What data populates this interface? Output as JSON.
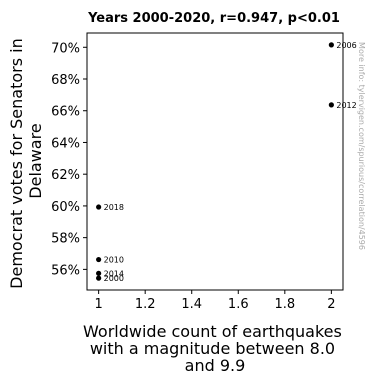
{
  "chart_data": {
    "type": "scatter",
    "title": "Years 2000-2020, r=0.947, p<0.01",
    "xlabel": [
      "Worldwide count of earthquakes",
      "with a magnitude between 8.0",
      "and 9.9"
    ],
    "ylabel": [
      "Democrat votes for Senators in",
      "Delaware"
    ],
    "xlim": [
      0.95,
      2.05
    ],
    "ylim": [
      0.547,
      0.709
    ],
    "xticks": [
      1,
      1.2,
      1.4,
      1.6,
      1.8,
      2
    ],
    "xtick_labels": [
      "1",
      "1.2",
      "1.4",
      "1.6",
      "1.8",
      "2"
    ],
    "yticks": [
      0.56,
      0.58,
      0.6,
      0.62,
      0.64,
      0.66,
      0.68,
      0.7
    ],
    "ytick_labels": [
      "56%",
      "58%",
      "60%",
      "62%",
      "64%",
      "66%",
      "68%",
      "70%"
    ],
    "points": [
      {
        "label": "2000",
        "x": 1,
        "y": 0.5545
      },
      {
        "label": "2006",
        "x": 2,
        "y": 0.7015
      },
      {
        "label": "2010",
        "x": 1,
        "y": 0.5662
      },
      {
        "label": "2012",
        "x": 2,
        "y": 0.6637
      },
      {
        "label": "2014",
        "x": 1,
        "y": 0.5575
      },
      {
        "label": "2018",
        "x": 1,
        "y": 0.5993
      }
    ],
    "marker_color": "#000000",
    "grid": false,
    "legend": "none"
  },
  "watermark": "More info: tylervigen.com/spurious/correlation/4596"
}
